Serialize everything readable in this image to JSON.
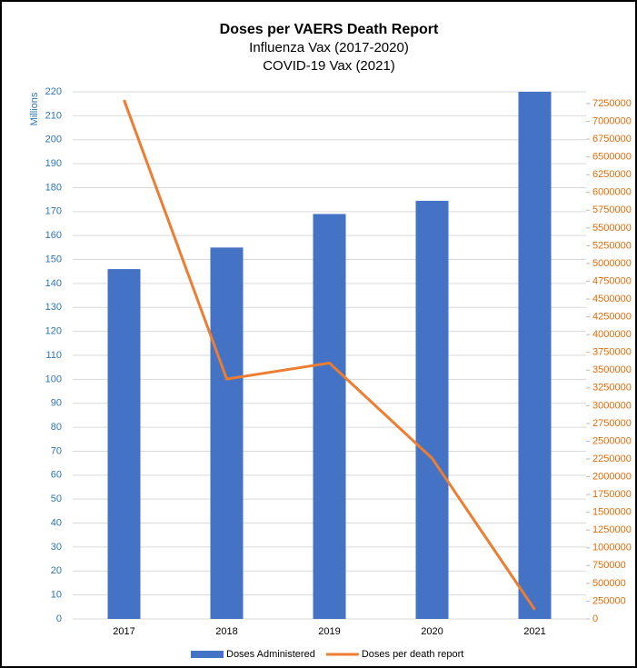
{
  "chart_data": {
    "type": "bar",
    "title": "Doses per VAERS Death Report",
    "subtitle": [
      "Influenza Vax (2017-2020)",
      "COVID-19 Vax (2021)"
    ],
    "ylabel": "Millions",
    "categories": [
      "2017",
      "2018",
      "2019",
      "2020",
      "2021"
    ],
    "series": [
      {
        "name": "Doses Administered",
        "color": "#4472c4",
        "values": [
          146,
          155,
          169,
          174.5,
          220
        ]
      },
      {
        "name": "Doses per death report",
        "color": "#ed7d31",
        "axis": "y2",
        "values": [
          7300000,
          3375000,
          3600000,
          2260000,
          130000
        ]
      }
    ],
    "ylim": [
      0,
      220
    ],
    "yticks": [
      0,
      10,
      20,
      30,
      40,
      50,
      60,
      70,
      80,
      90,
      100,
      110,
      120,
      130,
      140,
      150,
      160,
      170,
      180,
      190,
      200,
      210,
      220
    ],
    "y2lim": [
      0,
      7416000
    ],
    "y2ticks": [
      0,
      250000,
      500000,
      750000,
      1000000,
      1250000,
      1500000,
      1750000,
      2000000,
      2250000,
      2500000,
      2750000,
      3000000,
      3250000,
      3500000,
      3750000,
      4000000,
      4250000,
      4500000,
      4750000,
      5000000,
      5250000,
      5500000,
      5750000,
      6000000,
      6250000,
      6500000,
      6750000,
      7000000,
      7250000
    ],
    "grid": true,
    "legend": "bottom"
  }
}
